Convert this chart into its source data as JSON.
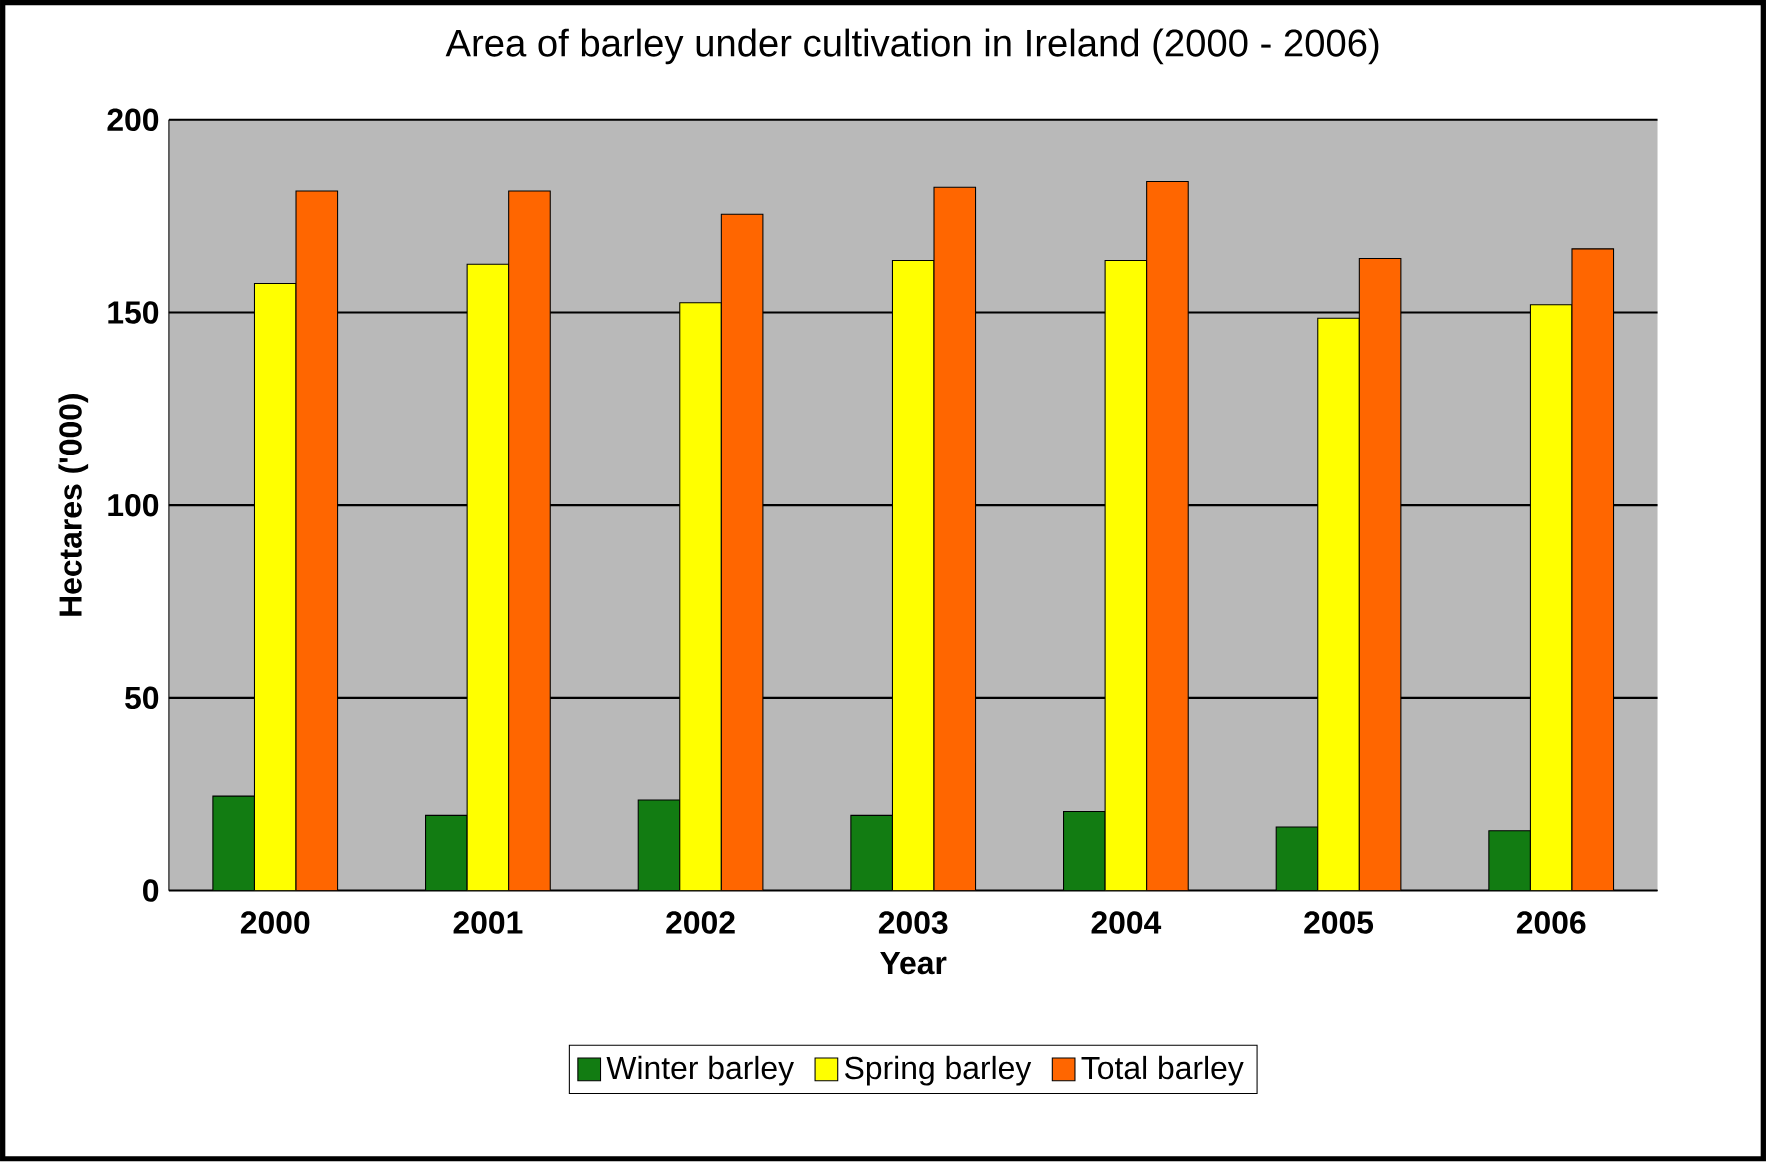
{
  "chart_data": {
    "type": "bar",
    "title": "Area of barley under cultivation in Ireland (2000 - 2006)",
    "xlabel": "Year",
    "ylabel": "Hectares ('000)",
    "categories": [
      "2000",
      "2001",
      "2002",
      "2003",
      "2004",
      "2005",
      "2006"
    ],
    "series": [
      {
        "name": "Winter barley",
        "color": "#127c12",
        "values": [
          24.5,
          19.5,
          23.5,
          19.5,
          20.5,
          16.5,
          15.5
        ]
      },
      {
        "name": "Spring barley",
        "color": "#ffff00",
        "values": [
          157.5,
          162.5,
          152.5,
          163.5,
          163.5,
          148.5,
          152
        ]
      },
      {
        "name": "Total barley",
        "color": "#ff6600",
        "values": [
          181.5,
          181.5,
          175.5,
          182.5,
          184,
          164,
          166.5
        ]
      }
    ],
    "ylim": [
      0,
      200
    ],
    "yticks": [
      0,
      50,
      100,
      150,
      200
    ],
    "grid": "y",
    "legend": "bottom"
  }
}
